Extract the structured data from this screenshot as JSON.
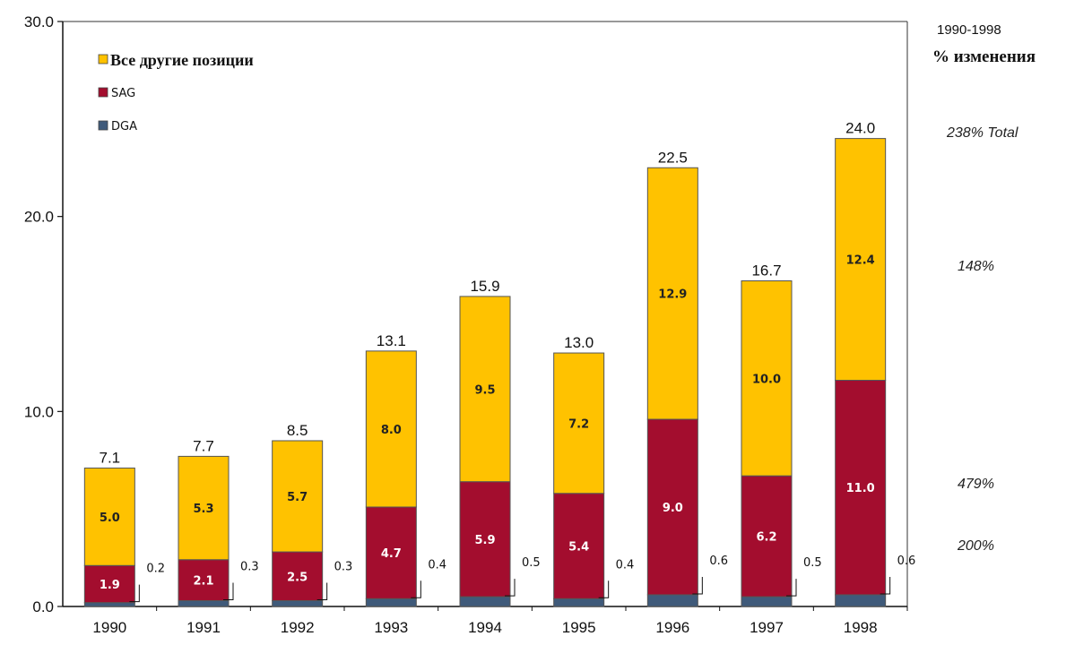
{
  "side_panel": {
    "range": "1990-1998",
    "header": "% изменения",
    "changes": [
      "238% Total",
      "148%",
      "479%",
      "200%"
    ]
  },
  "chart_data": {
    "type": "bar",
    "stacked": true,
    "categories": [
      "1990",
      "1991",
      "1992",
      "1993",
      "1994",
      "1995",
      "1996",
      "1997",
      "1998"
    ],
    "series": [
      {
        "name": "DGA",
        "color": "#3f5a7a",
        "values": [
          0.2,
          0.3,
          0.3,
          0.4,
          0.5,
          0.4,
          0.6,
          0.5,
          0.6
        ]
      },
      {
        "name": "SAG",
        "color": "#a30d2e",
        "values": [
          1.9,
          2.1,
          2.5,
          4.7,
          5.9,
          5.4,
          9.0,
          6.2,
          11.0
        ]
      },
      {
        "name": "Все другие позиции",
        "color": "#ffc200",
        "values": [
          5.0,
          5.3,
          5.7,
          8.0,
          9.5,
          7.2,
          12.9,
          10.0,
          12.4
        ]
      }
    ],
    "totals": [
      7.1,
      7.7,
      8.5,
      13.1,
      15.9,
      13.0,
      22.5,
      16.7,
      24.0
    ],
    "total_labels": [
      "7.1",
      "7.7",
      "8.5",
      "13.1",
      "15.9",
      "13.0",
      "22.5",
      "16.7",
      "24.0"
    ],
    "ytick_labels": [
      "0.0",
      "10.0",
      "20.0",
      "30.0"
    ],
    "ylim": [
      0,
      30
    ],
    "legend_position": "top-left",
    "grid": false
  }
}
